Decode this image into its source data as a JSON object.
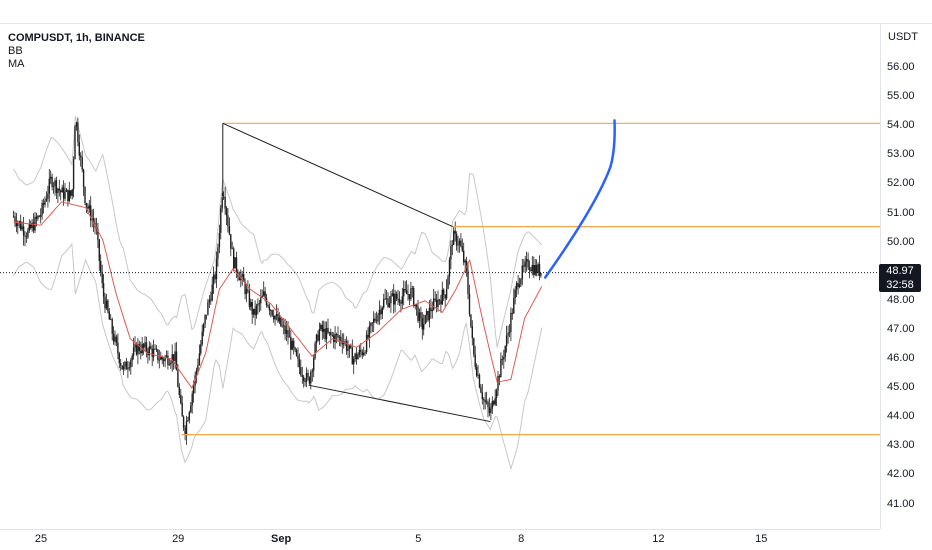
{
  "legend": {
    "symbol": "COMPUSDT, 1h, BINANCE",
    "indicator_1": "BB",
    "indicator_2": "MA"
  },
  "price_axis": {
    "currency": "USDT",
    "ticks": [
      "56.00",
      "55.00",
      "54.00",
      "53.00",
      "52.00",
      "51.00",
      "50.00",
      "48.00",
      "47.00",
      "46.00",
      "45.00",
      "44.00",
      "43.00",
      "42.00",
      "41.00"
    ]
  },
  "current_price": {
    "value": "48.97",
    "countdown": "32:58"
  },
  "time_axis": {
    "ticks": [
      {
        "label": "25",
        "bold": false
      },
      {
        "label": "29",
        "bold": false
      },
      {
        "label": "Sep",
        "bold": true
      },
      {
        "label": "5",
        "bold": false
      },
      {
        "label": "8",
        "bold": false
      },
      {
        "label": "12",
        "bold": false
      },
      {
        "label": "15",
        "bold": false
      }
    ]
  },
  "colors": {
    "candle": "#1e1e1e",
    "ma": "#e05a4f",
    "bb": "#c8c8c8",
    "level": "#f7a54a",
    "trendline": "#1e1e1e",
    "projection": "#2962ff"
  },
  "chart_data": {
    "type": "candlestick",
    "title": "COMPUSDT, 1h, BINANCE",
    "ylim": [
      40.5,
      56.6
    ],
    "x_range_days": [
      24.2,
      16.2
    ],
    "price_path": [
      {
        "t": 24.2,
        "p": 50.9
      },
      {
        "t": 24.6,
        "p": 50.3
      },
      {
        "t": 25.0,
        "p": 51.0
      },
      {
        "t": 25.3,
        "p": 52.2
      },
      {
        "t": 25.6,
        "p": 51.7
      },
      {
        "t": 25.9,
        "p": 51.6
      },
      {
        "t": 26.0,
        "p": 54.4
      },
      {
        "t": 26.3,
        "p": 51.4
      },
      {
        "t": 26.6,
        "p": 50.5
      },
      {
        "t": 26.8,
        "p": 48.3
      },
      {
        "t": 27.1,
        "p": 46.8
      },
      {
        "t": 27.4,
        "p": 45.6
      },
      {
        "t": 27.8,
        "p": 46.4
      },
      {
        "t": 28.2,
        "p": 46.3
      },
      {
        "t": 28.5,
        "p": 46.0
      },
      {
        "t": 28.9,
        "p": 46.1
      },
      {
        "t": 29.1,
        "p": 44.0
      },
      {
        "t": 29.2,
        "p": 43.6
      },
      {
        "t": 29.5,
        "p": 45.4
      },
      {
        "t": 29.8,
        "p": 47.5
      },
      {
        "t": 30.1,
        "p": 49.0
      },
      {
        "t": 30.3,
        "p": 52.0
      },
      {
        "t": 30.6,
        "p": 49.4
      },
      {
        "t": 30.9,
        "p": 48.6
      },
      {
        "t": 31.2,
        "p": 47.5
      },
      {
        "t": 31.5,
        "p": 48.2
      },
      {
        "t": 31.9,
        "p": 47.3
      },
      {
        "t": 32.2,
        "p": 46.8
      },
      {
        "t": 32.5,
        "p": 45.8
      },
      {
        "t": 32.8,
        "p": 45.2
      },
      {
        "t": 33.1,
        "p": 47.0
      },
      {
        "t": 33.4,
        "p": 46.8
      },
      {
        "t": 33.8,
        "p": 46.7
      },
      {
        "t": 34.1,
        "p": 46.0
      },
      {
        "t": 34.4,
        "p": 46.3
      },
      {
        "t": 34.7,
        "p": 47.3
      },
      {
        "t": 35.0,
        "p": 48.0
      },
      {
        "t": 35.4,
        "p": 48.1
      },
      {
        "t": 35.8,
        "p": 48.3
      },
      {
        "t": 36.1,
        "p": 47.1
      },
      {
        "t": 36.4,
        "p": 47.8
      },
      {
        "t": 36.8,
        "p": 48.3
      },
      {
        "t": 37.0,
        "p": 50.2
      },
      {
        "t": 37.2,
        "p": 50.0
      },
      {
        "t": 37.4,
        "p": 49.0
      },
      {
        "t": 37.6,
        "p": 46.2
      },
      {
        "t": 37.9,
        "p": 44.6
      },
      {
        "t": 38.1,
        "p": 44.1
      },
      {
        "t": 38.3,
        "p": 45.2
      },
      {
        "t": 38.6,
        "p": 46.8
      },
      {
        "t": 38.9,
        "p": 48.7
      },
      {
        "t": 39.2,
        "p": 49.3
      },
      {
        "t": 39.4,
        "p": 49.1
      },
      {
        "t": 39.6,
        "p": 49.0
      }
    ],
    "ma_path": [
      {
        "t": 24.2,
        "p": 50.7
      },
      {
        "t": 25.0,
        "p": 50.6
      },
      {
        "t": 25.6,
        "p": 51.4
      },
      {
        "t": 26.3,
        "p": 51.2
      },
      {
        "t": 26.8,
        "p": 50.1
      },
      {
        "t": 27.2,
        "p": 48.2
      },
      {
        "t": 27.6,
        "p": 46.7
      },
      {
        "t": 28.1,
        "p": 46.2
      },
      {
        "t": 28.8,
        "p": 46.0
      },
      {
        "t": 29.4,
        "p": 45.0
      },
      {
        "t": 29.8,
        "p": 46.2
      },
      {
        "t": 30.2,
        "p": 48.4
      },
      {
        "t": 30.6,
        "p": 49.1
      },
      {
        "t": 31.1,
        "p": 48.4
      },
      {
        "t": 31.7,
        "p": 47.9
      },
      {
        "t": 32.3,
        "p": 47.0
      },
      {
        "t": 32.9,
        "p": 46.1
      },
      {
        "t": 33.5,
        "p": 46.7
      },
      {
        "t": 34.2,
        "p": 46.4
      },
      {
        "t": 34.8,
        "p": 46.9
      },
      {
        "t": 35.5,
        "p": 47.7
      },
      {
        "t": 36.2,
        "p": 48.0
      },
      {
        "t": 36.7,
        "p": 47.6
      },
      {
        "t": 37.1,
        "p": 48.4
      },
      {
        "t": 37.5,
        "p": 49.4
      },
      {
        "t": 37.9,
        "p": 47.2
      },
      {
        "t": 38.3,
        "p": 45.2
      },
      {
        "t": 38.7,
        "p": 45.3
      },
      {
        "t": 39.1,
        "p": 47.4
      },
      {
        "t": 39.6,
        "p": 48.5
      }
    ],
    "bb_band_width": 1.1,
    "levels": [
      54.1,
      50.55,
      43.4
    ],
    "level_x_range": [
      [
        30.3,
        40.5
      ],
      [
        37.0,
        40.5
      ],
      [
        29.1,
        40.5
      ]
    ],
    "trendlines": [
      {
        "from": {
          "t": 30.3,
          "p": 54.1
        },
        "to": {
          "t": 37.0,
          "p": 50.55
        }
      },
      {
        "from": {
          "t": 32.8,
          "p": 45.1
        },
        "to": {
          "t": 38.1,
          "p": 43.85
        }
      }
    ],
    "projection": [
      {
        "t": 39.7,
        "p": 48.8
      },
      {
        "t": 40.4,
        "p": 49.8
      },
      {
        "t": 41.2,
        "p": 51.5
      },
      {
        "t": 41.6,
        "p": 53.0
      },
      {
        "t": 41.7,
        "p": 54.2
      }
    ],
    "current_price": 48.97
  }
}
